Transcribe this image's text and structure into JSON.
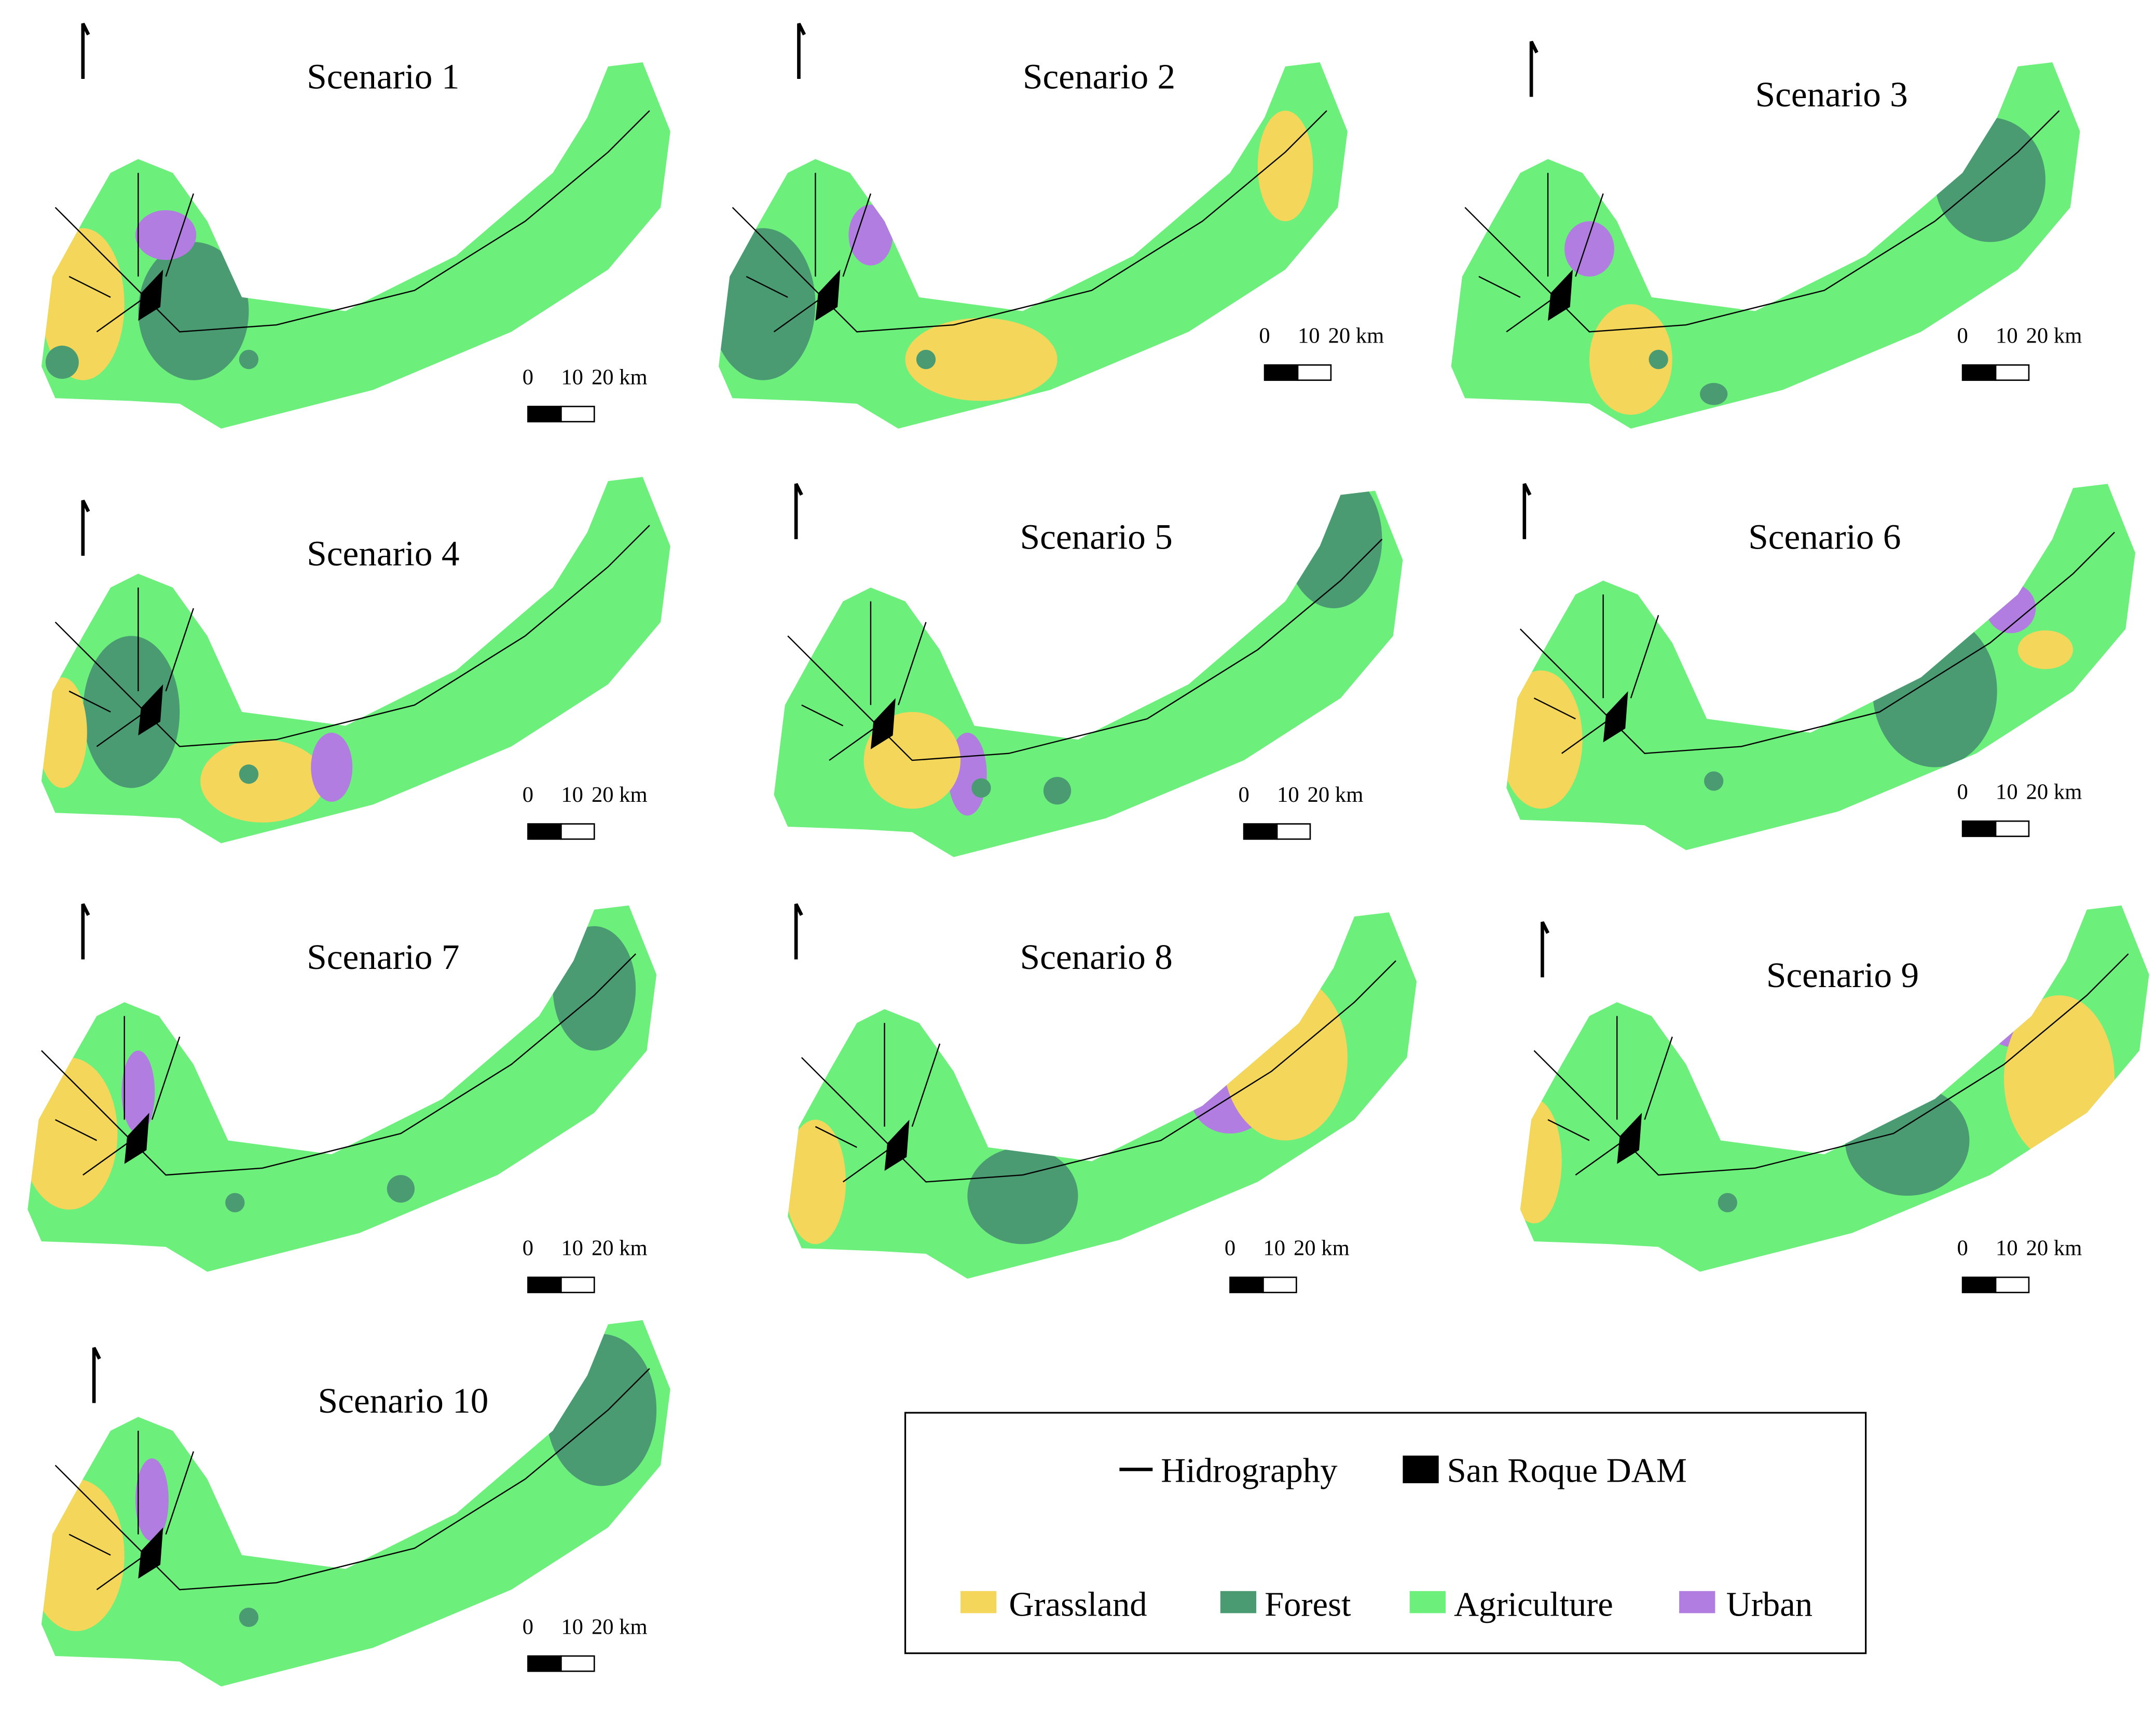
{
  "panels": [
    {
      "title": "Scenario 1",
      "scale_labels": [
        "0",
        "10",
        "20 km"
      ]
    },
    {
      "title": "Scenario 2",
      "scale_labels": [
        "0",
        "10",
        "20 km"
      ]
    },
    {
      "title": "Scenario 3",
      "scale_labels": [
        "0",
        "10",
        "20 km"
      ]
    },
    {
      "title": "Scenario 4",
      "scale_labels": [
        "0",
        "10",
        "20 km"
      ]
    },
    {
      "title": "Scenario 5",
      "scale_labels": [
        "0",
        "10",
        "20 km"
      ]
    },
    {
      "title": "Scenario 6",
      "scale_labels": [
        "0",
        "10",
        "20 km"
      ]
    },
    {
      "title": "Scenario 7",
      "scale_labels": [
        "0",
        "10",
        "20 km"
      ]
    },
    {
      "title": "Scenario 8",
      "scale_labels": [
        "0",
        "10",
        "20 km"
      ]
    },
    {
      "title": "Scenario 9",
      "scale_labels": [
        "0",
        "10",
        "20 km"
      ]
    },
    {
      "title": "Scenario 10",
      "scale_labels": [
        "0",
        "10",
        "20 km"
      ]
    }
  ],
  "legend": {
    "lines": [
      {
        "label": "Hidrography"
      },
      {
        "label": "San Roque DAM"
      }
    ],
    "classes": [
      {
        "label": "Grassland",
        "color": "#f3d65a"
      },
      {
        "label": "Forest",
        "color": "#4a9a72"
      },
      {
        "label": "Agriculture",
        "color": "#6def7c"
      },
      {
        "label": "Urban",
        "color": "#b17de0"
      }
    ]
  }
}
